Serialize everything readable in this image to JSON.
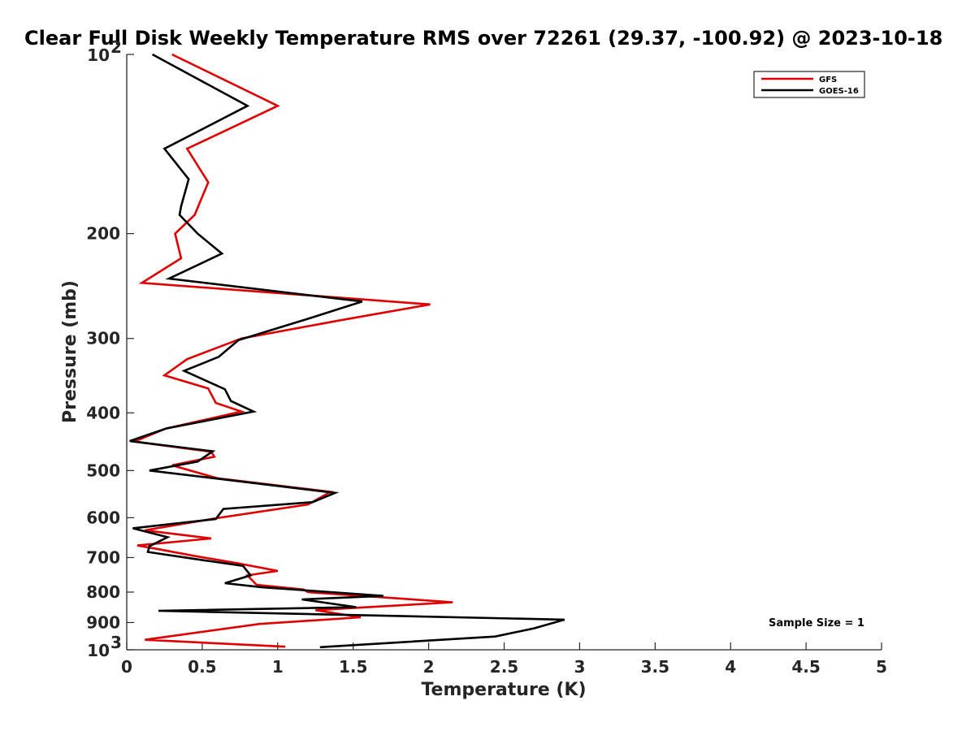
{
  "chart_data": {
    "type": "line",
    "title": "Clear Full Disk Weekly Temperature RMS over 72261 (29.37, -100.92) @ 2023-10-18",
    "xlabel": "Temperature (K)",
    "ylabel": "Pressure (mb)",
    "xlim": [
      0,
      5
    ],
    "ylim": [
      100,
      1000
    ],
    "y_scale": "log",
    "y_reversed": true,
    "grid": false,
    "legend_position": "top-right",
    "x_ticks": [
      "0",
      "0.5",
      "1",
      "1.5",
      "2",
      "2.5",
      "3",
      "3.5",
      "4",
      "4.5",
      "5"
    ],
    "y_ticks": [
      {
        "value": 100,
        "base": "10",
        "exp": "2"
      },
      {
        "value": 200,
        "label": "200"
      },
      {
        "value": 300,
        "label": "300"
      },
      {
        "value": 400,
        "label": "400"
      },
      {
        "value": 500,
        "label": "500"
      },
      {
        "value": 600,
        "label": "600"
      },
      {
        "value": 700,
        "label": "700"
      },
      {
        "value": 800,
        "label": "800"
      },
      {
        "value": 900,
        "label": "900"
      },
      {
        "value": 1000,
        "base": "10",
        "exp": "3"
      }
    ],
    "series": [
      {
        "name": "GFS",
        "color": "#e00000",
        "points": [
          [
            0.3,
            100
          ],
          [
            1.0,
            122
          ],
          [
            0.4,
            144
          ],
          [
            0.54,
            164
          ],
          [
            0.45,
            186
          ],
          [
            0.32,
            200
          ],
          [
            0.36,
            220
          ],
          [
            0.1,
            242
          ],
          [
            2.01,
            263
          ],
          [
            1.4,
            280
          ],
          [
            0.76,
            300
          ],
          [
            0.4,
            325
          ],
          [
            0.25,
            346
          ],
          [
            0.54,
            364
          ],
          [
            0.59,
            385
          ],
          [
            0.76,
            398
          ],
          [
            0.26,
            425
          ],
          [
            0.05,
            447
          ],
          [
            0.56,
            465
          ],
          [
            0.58,
            474
          ],
          [
            0.3,
            490
          ],
          [
            0.6,
            515
          ],
          [
            1.35,
            543
          ],
          [
            1.2,
            570
          ],
          [
            0.58,
            602
          ],
          [
            0.12,
            630
          ],
          [
            0.56,
            650
          ],
          [
            0.07,
            668
          ],
          [
            0.2,
            677
          ],
          [
            0.44,
            695
          ],
          [
            0.74,
            716
          ],
          [
            1.0,
            737
          ],
          [
            0.8,
            750
          ],
          [
            0.86,
            778
          ],
          [
            1.17,
            792
          ],
          [
            1.2,
            800
          ],
          [
            2.16,
            832
          ],
          [
            1.25,
            858
          ],
          [
            1.55,
            882
          ],
          [
            0.88,
            905
          ],
          [
            0.12,
            962
          ],
          [
            1.05,
            988
          ]
        ]
      },
      {
        "name": "GOES-16",
        "color": "#000000",
        "points": [
          [
            0.17,
            100
          ],
          [
            0.8,
            122
          ],
          [
            0.25,
            144
          ],
          [
            0.41,
            162
          ],
          [
            0.36,
            180
          ],
          [
            0.35,
            186
          ],
          [
            0.47,
            200
          ],
          [
            0.63,
            216
          ],
          [
            0.28,
            238
          ],
          [
            1.56,
            260
          ],
          [
            1.2,
            278
          ],
          [
            0.74,
            302
          ],
          [
            0.61,
            322
          ],
          [
            0.38,
            340
          ],
          [
            0.65,
            365
          ],
          [
            0.69,
            382
          ],
          [
            0.84,
            398
          ],
          [
            0.26,
            425
          ],
          [
            0.02,
            446
          ],
          [
            0.57,
            464
          ],
          [
            0.47,
            483
          ],
          [
            0.15,
            500
          ],
          [
            1.38,
            545
          ],
          [
            1.23,
            565
          ],
          [
            0.64,
            580
          ],
          [
            0.59,
            603
          ],
          [
            0.04,
            625
          ],
          [
            0.27,
            647
          ],
          [
            0.15,
            670
          ],
          [
            0.14,
            685
          ],
          [
            0.47,
            705
          ],
          [
            0.77,
            723
          ],
          [
            0.82,
            750
          ],
          [
            0.65,
            773
          ],
          [
            0.89,
            785
          ],
          [
            1.7,
            812
          ],
          [
            1.16,
            823
          ],
          [
            1.52,
            848
          ],
          [
            0.21,
            860
          ],
          [
            2.9,
            890
          ],
          [
            2.7,
            920
          ],
          [
            2.44,
            950
          ],
          [
            1.28,
            990
          ]
        ]
      }
    ],
    "annotations": [
      {
        "text": "Sample Size = 1"
      }
    ]
  }
}
